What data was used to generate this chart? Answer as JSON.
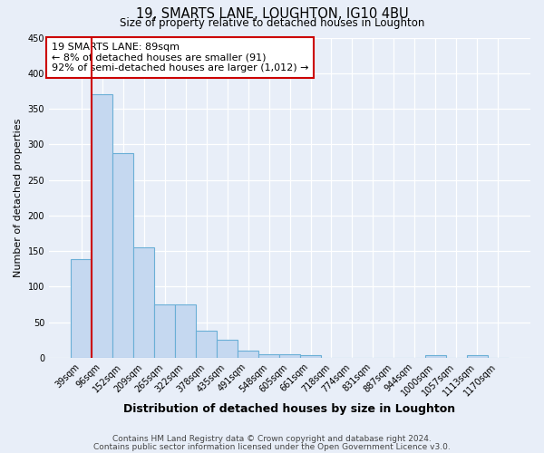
{
  "title": "19, SMARTS LANE, LOUGHTON, IG10 4BU",
  "subtitle": "Size of property relative to detached houses in Loughton",
  "xlabel": "Distribution of detached houses by size in Loughton",
  "ylabel": "Number of detached properties",
  "bar_values": [
    138,
    370,
    287,
    155,
    75,
    75,
    38,
    25,
    10,
    5,
    5,
    3,
    0,
    0,
    0,
    0,
    0,
    3,
    0,
    3,
    0
  ],
  "bar_labels": [
    "39sqm",
    "96sqm",
    "152sqm",
    "209sqm",
    "265sqm",
    "322sqm",
    "378sqm",
    "435sqm",
    "491sqm",
    "548sqm",
    "605sqm",
    "661sqm",
    "718sqm",
    "774sqm",
    "831sqm",
    "887sqm",
    "944sqm",
    "1000sqm",
    "1057sqm",
    "1113sqm",
    "1170sqm"
  ],
  "bar_color": "#c5d8f0",
  "bar_edge_color": "#6aafd6",
  "marker_color": "#cc0000",
  "annotation_title": "19 SMARTS LANE: 89sqm",
  "annotation_line1": "← 8% of detached houses are smaller (91)",
  "annotation_line2": "92% of semi-detached houses are larger (1,012) →",
  "annotation_box_edge_color": "#cc0000",
  "ylim": [
    0,
    450
  ],
  "yticks": [
    0,
    50,
    100,
    150,
    200,
    250,
    300,
    350,
    400,
    450
  ],
  "footer1": "Contains HM Land Registry data © Crown copyright and database right 2024.",
  "footer2": "Contains public sector information licensed under the Open Government Licence v3.0.",
  "bg_color": "#e8eef8",
  "plot_bg_color": "#e8eef8"
}
